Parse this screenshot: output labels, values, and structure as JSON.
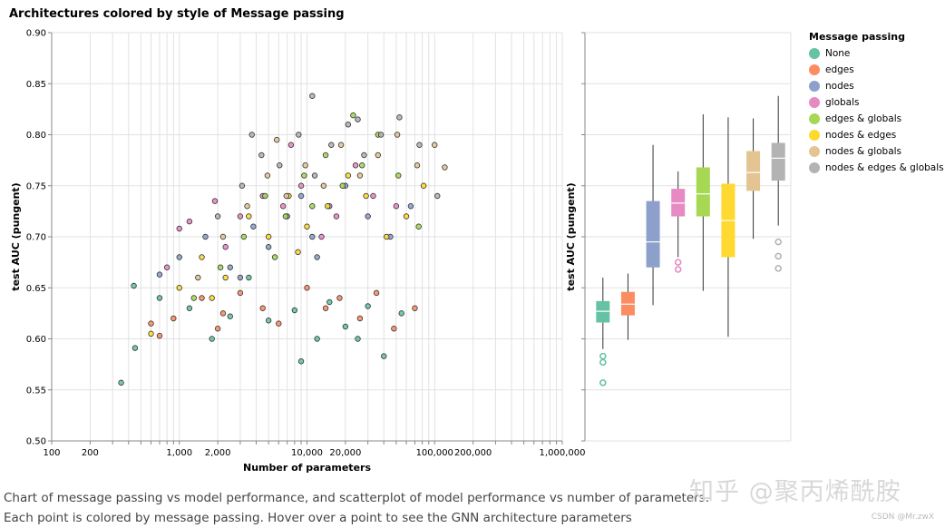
{
  "title": "Architectures colored by style of Message passing",
  "caption": "Chart of message passing vs model performance, and scatterplot of model performance vs number of parameters. Each point is colored by message passing. Hover over a point to see the GNN architecture parameters",
  "watermark": "知乎 @聚丙烯酰胺",
  "credit": "CSDN @Mr.zwX",
  "legend": {
    "title": "Message passing",
    "items": [
      {
        "label": "None",
        "color": "#66c2a5"
      },
      {
        "label": "edges",
        "color": "#fc8d62"
      },
      {
        "label": "nodes",
        "color": "#8da0cb"
      },
      {
        "label": "globals",
        "color": "#e78ac3"
      },
      {
        "label": "edges & globals",
        "color": "#a6d854"
      },
      {
        "label": "nodes & edges",
        "color": "#ffd92f"
      },
      {
        "label": "nodes & globals",
        "color": "#e5c494"
      },
      {
        "label": "nodes & edges & globals",
        "color": "#b3b3b3"
      }
    ]
  },
  "chart_data": [
    {
      "type": "scatter",
      "xlabel": "Number of parameters",
      "ylabel": "test AUC (pungent)",
      "xscale": "log",
      "xlim": [
        100,
        1000000
      ],
      "ylim": [
        0.5,
        0.9
      ],
      "x_ticks": [
        "100",
        "200",
        "1,000",
        "2,000",
        "10,000",
        "20,000",
        "100,000",
        "200,000",
        "1,000,000"
      ],
      "y_ticks": [
        "0.50",
        "0.55",
        "0.60",
        "0.65",
        "0.70",
        "0.75",
        "0.80",
        "0.85",
        "0.90"
      ],
      "grid": true,
      "series": [
        {
          "name": "None",
          "points": [
            [
              350,
              0.557
            ],
            [
              450,
              0.591
            ],
            [
              440,
              0.652
            ],
            [
              700,
              0.64
            ],
            [
              1200,
              0.63
            ],
            [
              2500,
              0.622
            ],
            [
              5000,
              0.618
            ],
            [
              8000,
              0.628
            ],
            [
              9000,
              0.578
            ],
            [
              12000,
              0.6
            ],
            [
              15000,
              0.636
            ],
            [
              20000,
              0.612
            ],
            [
              25000,
              0.6
            ],
            [
              30000,
              0.632
            ],
            [
              40000,
              0.583
            ],
            [
              55000,
              0.625
            ],
            [
              3500,
              0.66
            ],
            [
              1800,
              0.6
            ]
          ]
        },
        {
          "name": "edges",
          "points": [
            [
              600,
              0.615
            ],
            [
              900,
              0.62
            ],
            [
              1500,
              0.64
            ],
            [
              2000,
              0.61
            ],
            [
              3000,
              0.645
            ],
            [
              4500,
              0.63
            ],
            [
              6000,
              0.615
            ],
            [
              10000,
              0.65
            ],
            [
              14000,
              0.63
            ],
            [
              18000,
              0.64
            ],
            [
              26000,
              0.62
            ],
            [
              35000,
              0.645
            ],
            [
              48000,
              0.61
            ],
            [
              70000,
              0.63
            ],
            [
              2200,
              0.625
            ],
            [
              700,
              0.603
            ]
          ]
        },
        {
          "name": "nodes",
          "points": [
            [
              700,
              0.663
            ],
            [
              1000,
              0.68
            ],
            [
              1600,
              0.7
            ],
            [
              2500,
              0.67
            ],
            [
              3800,
              0.71
            ],
            [
              5000,
              0.69
            ],
            [
              7000,
              0.72
            ],
            [
              9000,
              0.74
            ],
            [
              11000,
              0.7
            ],
            [
              15000,
              0.73
            ],
            [
              20000,
              0.75
            ],
            [
              30000,
              0.72
            ],
            [
              45000,
              0.7
            ],
            [
              65000,
              0.73
            ],
            [
              3000,
              0.66
            ],
            [
              12000,
              0.68
            ]
          ]
        },
        {
          "name": "globals",
          "points": [
            [
              800,
              0.67
            ],
            [
              1200,
              0.715
            ],
            [
              1900,
              0.735
            ],
            [
              3000,
              0.72
            ],
            [
              4500,
              0.74
            ],
            [
              6500,
              0.73
            ],
            [
              9000,
              0.75
            ],
            [
              13000,
              0.7
            ],
            [
              17000,
              0.72
            ],
            [
              24000,
              0.77
            ],
            [
              33000,
              0.74
            ],
            [
              50000,
              0.73
            ],
            [
              2300,
              0.69
            ],
            [
              1000,
              0.708
            ],
            [
              7500,
              0.79
            ]
          ]
        },
        {
          "name": "edges & globals",
          "points": [
            [
              1300,
              0.64
            ],
            [
              2100,
              0.67
            ],
            [
              3200,
              0.7
            ],
            [
              4700,
              0.74
            ],
            [
              6800,
              0.72
            ],
            [
              9500,
              0.76
            ],
            [
              14000,
              0.78
            ],
            [
              19000,
              0.75
            ],
            [
              27000,
              0.77
            ],
            [
              36000,
              0.8
            ],
            [
              52000,
              0.76
            ],
            [
              75000,
              0.71
            ],
            [
              11000,
              0.73
            ],
            [
              23000,
              0.819
            ],
            [
              5600,
              0.68
            ]
          ]
        },
        {
          "name": "nodes & edges",
          "points": [
            [
              600,
              0.605
            ],
            [
              1000,
              0.65
            ],
            [
              1500,
              0.68
            ],
            [
              2300,
              0.66
            ],
            [
              3500,
              0.72
            ],
            [
              5000,
              0.7
            ],
            [
              7200,
              0.74
            ],
            [
              10000,
              0.71
            ],
            [
              14500,
              0.73
            ],
            [
              21000,
              0.76
            ],
            [
              29000,
              0.74
            ],
            [
              42000,
              0.7
            ],
            [
              60000,
              0.72
            ],
            [
              82000,
              0.75
            ],
            [
              1800,
              0.64
            ],
            [
              8500,
              0.685
            ]
          ]
        },
        {
          "name": "nodes & globals",
          "points": [
            [
              1400,
              0.66
            ],
            [
              2200,
              0.7
            ],
            [
              3400,
              0.73
            ],
            [
              4900,
              0.76
            ],
            [
              6900,
              0.74
            ],
            [
              9700,
              0.77
            ],
            [
              13500,
              0.75
            ],
            [
              18500,
              0.79
            ],
            [
              26000,
              0.76
            ],
            [
              36000,
              0.78
            ],
            [
              51000,
              0.8
            ],
            [
              73000,
              0.77
            ],
            [
              100000,
              0.79
            ],
            [
              120000,
              0.768
            ],
            [
              5800,
              0.795
            ]
          ]
        },
        {
          "name": "nodes & edges & globals",
          "points": [
            [
              2000,
              0.72
            ],
            [
              3100,
              0.75
            ],
            [
              4400,
              0.78
            ],
            [
              6100,
              0.77
            ],
            [
              8600,
              0.8
            ],
            [
              11500,
              0.76
            ],
            [
              15500,
              0.79
            ],
            [
              21000,
              0.81
            ],
            [
              28000,
              0.78
            ],
            [
              38000,
              0.8
            ],
            [
              53000,
              0.817
            ],
            [
              76000,
              0.79
            ],
            [
              105000,
              0.74
            ],
            [
              11000,
              0.838
            ],
            [
              25000,
              0.815
            ],
            [
              3700,
              0.8
            ]
          ]
        }
      ]
    },
    {
      "type": "box",
      "ylabel": "test AUC (pungent)",
      "ylim": [
        0.5,
        0.9
      ],
      "y_ticks": [
        "0.50",
        "0.55",
        "0.60",
        "0.65",
        "0.70",
        "0.75",
        "0.80",
        "0.85",
        "0.90"
      ],
      "grid": true,
      "boxes": [
        {
          "name": "None",
          "min": 0.59,
          "q1": 0.616,
          "median": 0.627,
          "q3": 0.637,
          "max": 0.66,
          "outliers": [
            0.583,
            0.577,
            0.557
          ]
        },
        {
          "name": "edges",
          "min": 0.599,
          "q1": 0.623,
          "median": 0.634,
          "q3": 0.646,
          "max": 0.664,
          "outliers": []
        },
        {
          "name": "nodes",
          "min": 0.633,
          "q1": 0.67,
          "median": 0.695,
          "q3": 0.735,
          "max": 0.79,
          "outliers": []
        },
        {
          "name": "globals",
          "min": 0.68,
          "q1": 0.72,
          "median": 0.733,
          "q3": 0.747,
          "max": 0.764,
          "outliers": [
            0.675,
            0.668
          ]
        },
        {
          "name": "edges & globals",
          "min": 0.647,
          "q1": 0.72,
          "median": 0.742,
          "q3": 0.768,
          "max": 0.82,
          "outliers": []
        },
        {
          "name": "nodes & edges",
          "min": 0.602,
          "q1": 0.68,
          "median": 0.716,
          "q3": 0.752,
          "max": 0.817,
          "outliers": []
        },
        {
          "name": "nodes & globals",
          "min": 0.698,
          "q1": 0.745,
          "median": 0.763,
          "q3": 0.784,
          "max": 0.816,
          "outliers": []
        },
        {
          "name": "nodes & edges & globals",
          "min": 0.711,
          "q1": 0.755,
          "median": 0.777,
          "q3": 0.792,
          "max": 0.838,
          "outliers": [
            0.695,
            0.681,
            0.669
          ]
        }
      ]
    }
  ]
}
